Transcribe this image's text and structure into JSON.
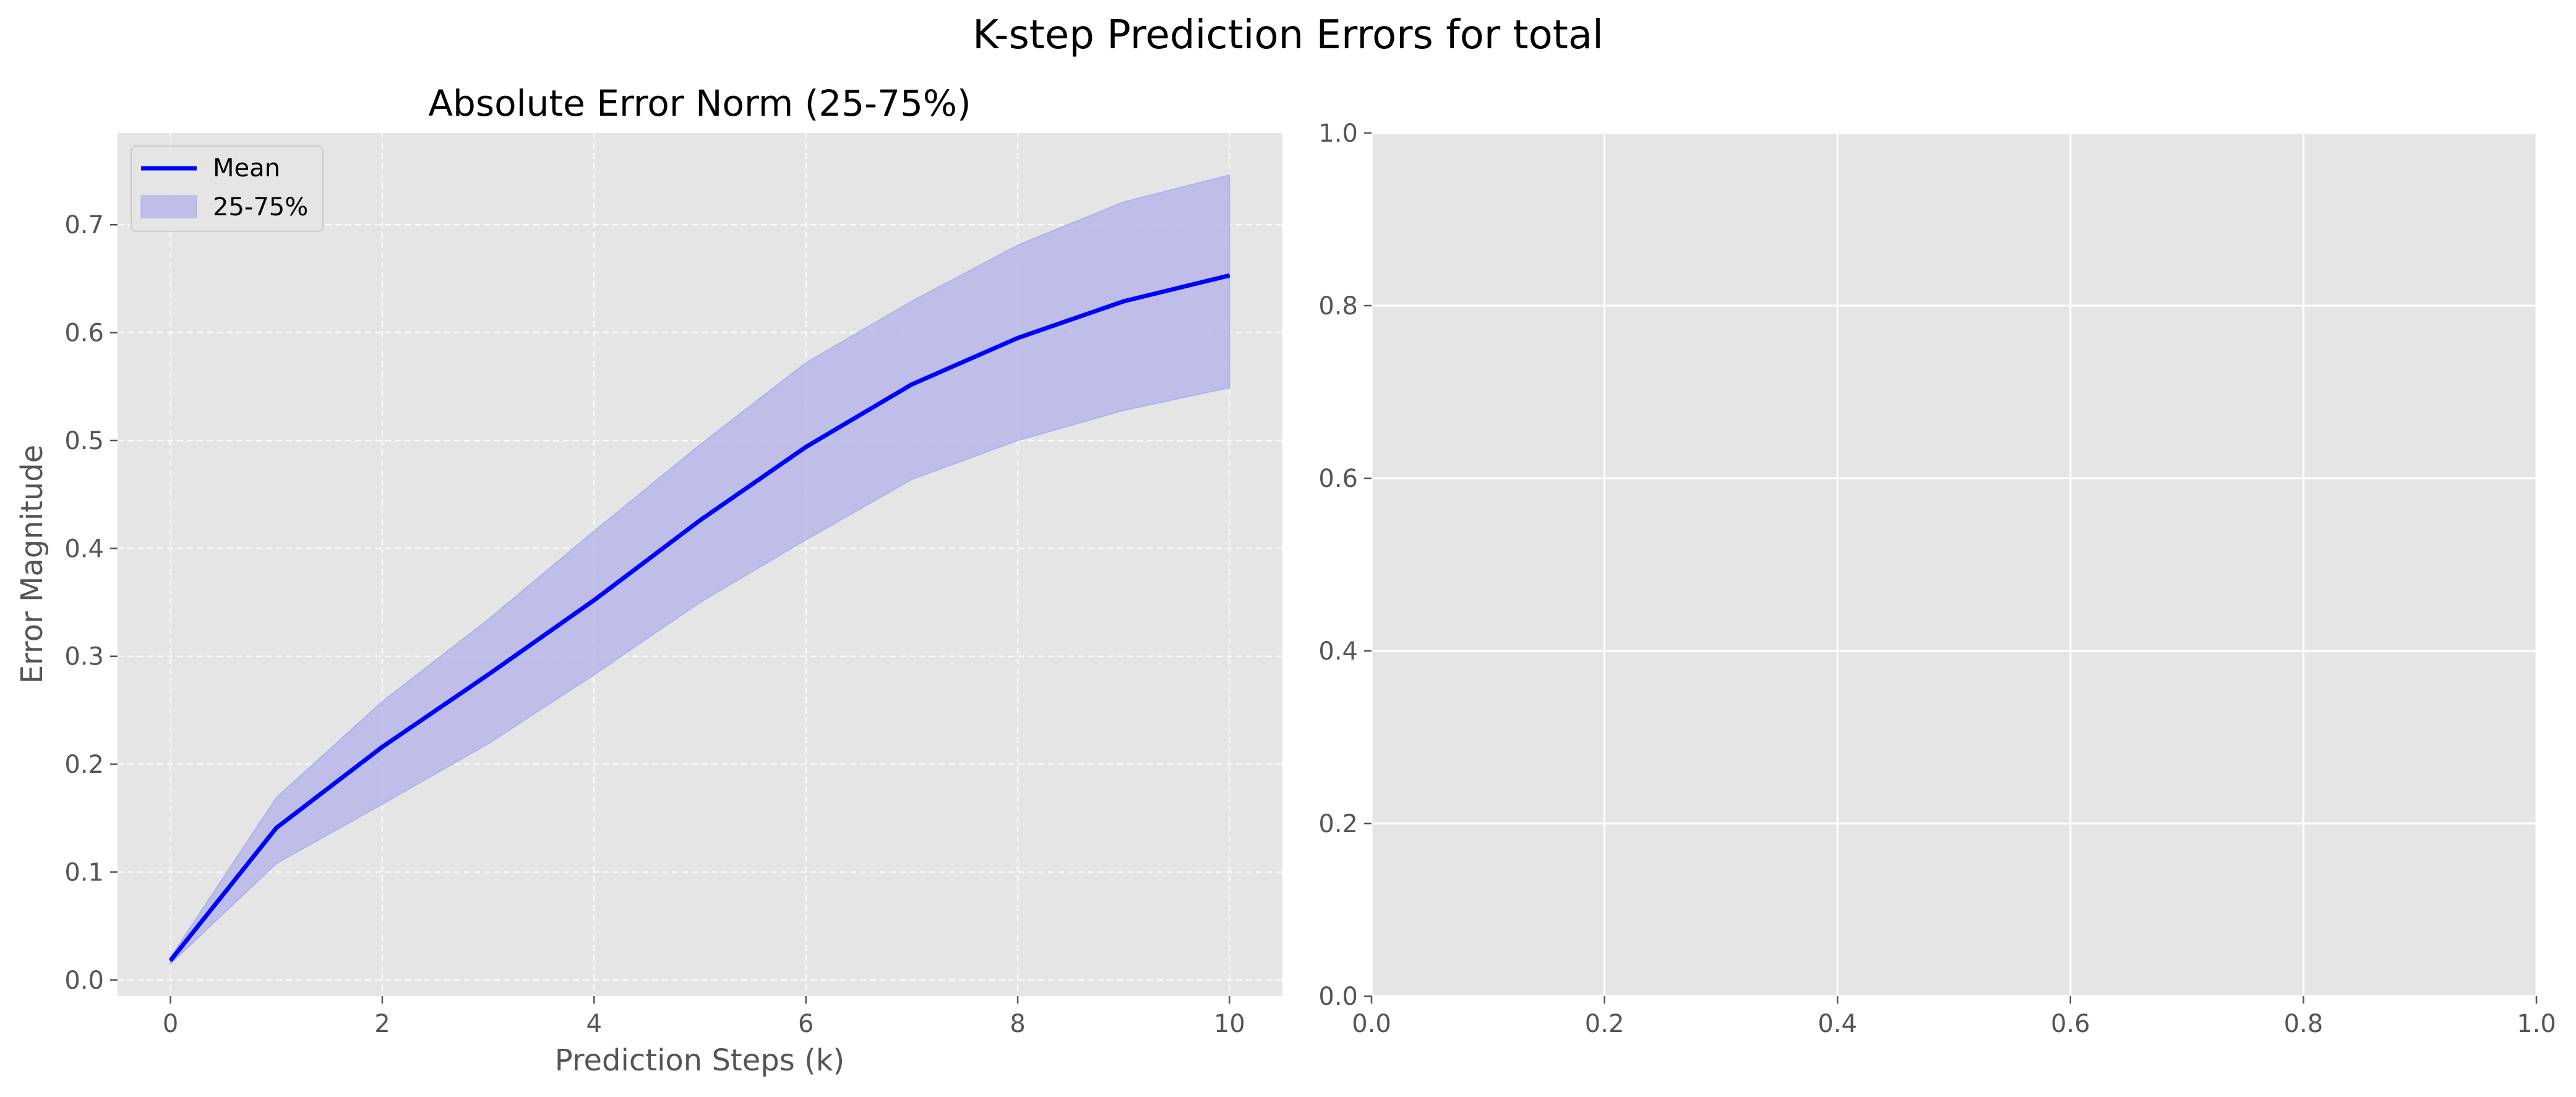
{
  "figure": {
    "title": "K-step Prediction Errors for total"
  },
  "colors": {
    "axes_background": "#E5E5E5",
    "mean_line": "#0000FF",
    "band_fill": "#B0B0EA",
    "grid": "#FFFFFF",
    "text": "#555555"
  },
  "chart_data": [
    {
      "type": "line",
      "title": "Absolute Error Norm (25-75%)",
      "xlabel": "Prediction Steps (k)",
      "ylabel": "Error Magnitude",
      "x": [
        0,
        1,
        2,
        3,
        4,
        5,
        6,
        7,
        8,
        9,
        10
      ],
      "series": [
        {
          "name": "Mean",
          "values": [
            0.018,
            0.141,
            0.216,
            0.283,
            0.352,
            0.426,
            0.494,
            0.552,
            0.595,
            0.629,
            0.653
          ]
        }
      ],
      "band": {
        "name": "25-75%",
        "lower": [
          0.015,
          0.108,
          0.163,
          0.219,
          0.283,
          0.35,
          0.408,
          0.464,
          0.5,
          0.528,
          0.549
        ],
        "upper": [
          0.021,
          0.169,
          0.258,
          0.334,
          0.416,
          0.496,
          0.572,
          0.629,
          0.681,
          0.721,
          0.746
        ]
      },
      "xlim": [
        -0.5,
        10.5
      ],
      "ylim": [
        -0.015,
        0.785
      ],
      "xticks": [
        0,
        2,
        4,
        6,
        8,
        10
      ],
      "yticks": [
        0.0,
        0.1,
        0.2,
        0.3,
        0.4,
        0.5,
        0.6,
        0.7
      ],
      "xtick_labels": [
        "0",
        "2",
        "4",
        "6",
        "8",
        "10"
      ],
      "ytick_labels": [
        "0.0",
        "0.1",
        "0.2",
        "0.3",
        "0.4",
        "0.5",
        "0.6",
        "0.7"
      ],
      "grid": "dashed",
      "legend": {
        "placement": "upper-left",
        "entries": [
          "Mean",
          "25-75%"
        ]
      }
    },
    {
      "type": "line",
      "title": "",
      "xlabel": "",
      "ylabel": "",
      "series": [],
      "xlim": [
        0,
        1
      ],
      "ylim": [
        0,
        1
      ],
      "xticks": [
        0.0,
        0.2,
        0.4,
        0.6,
        0.8,
        1.0
      ],
      "yticks": [
        0.0,
        0.2,
        0.4,
        0.6,
        0.8,
        1.0
      ],
      "xtick_labels": [
        "0.0",
        "0.2",
        "0.4",
        "0.6",
        "0.8",
        "1.0"
      ],
      "ytick_labels": [
        "0.0",
        "0.2",
        "0.4",
        "0.6",
        "0.8",
        "1.0"
      ],
      "grid": "solid"
    }
  ]
}
